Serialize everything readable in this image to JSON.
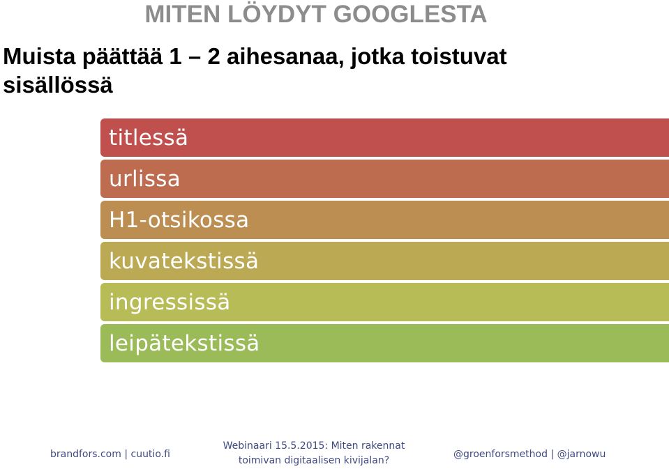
{
  "slide": {
    "title": "MITEN LÖYDYT GOOGLESTA",
    "subtitle": "Muista päättää 1 – 2 aihesanaa, jotka toistuvat sisällössä"
  },
  "bars": [
    {
      "label": "titlessä",
      "color": "#c0504d"
    },
    {
      "label": "urlissa",
      "color": "#be6c4f"
    },
    {
      "label": "H1-otsikossa",
      "color": "#bd8e52"
    },
    {
      "label": "kuvatekstissä",
      "color": "#bba953"
    },
    {
      "label": "ingressissä",
      "color": "#b7bc57"
    },
    {
      "label": "leipätekstissä",
      "color": "#9bbb59"
    }
  ],
  "footer": {
    "left": "brandfors.com | cuutio.fi",
    "center_line1": "Webinaari 15.5.2015: Miten rakennat",
    "center_line2": "toimivan digitaalisen kivijalan?",
    "right": "@groenforsmethod | @jarnowu"
  }
}
